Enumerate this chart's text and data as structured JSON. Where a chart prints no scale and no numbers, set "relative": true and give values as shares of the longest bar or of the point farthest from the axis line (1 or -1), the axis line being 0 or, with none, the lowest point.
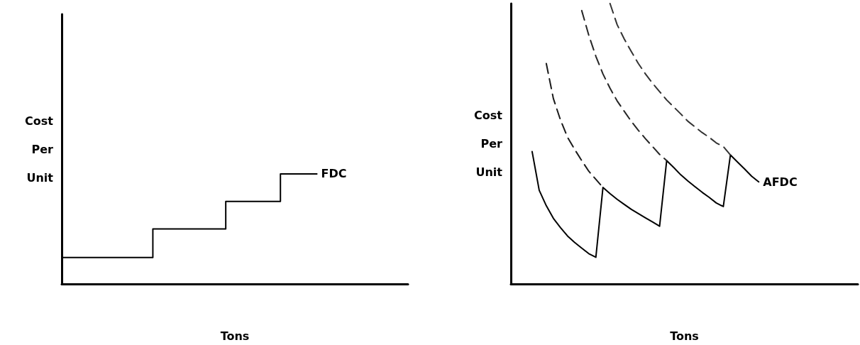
{
  "chart_data": [
    {
      "type": "step",
      "ylabel": "Cost\nPer\nUnit",
      "xlabel": "Tons",
      "relative": true,
      "categories": [
        null,
        null,
        null,
        null,
        null,
        null,
        null,
        null,
        null,
        null,
        null,
        null,
        null,
        null,
        null,
        null,
        null,
        null,
        null,
        null
      ],
      "series": [
        {
          "name": "FDC",
          "color": "#000000",
          "line_style": "solid",
          "values": [
            0.24,
            0.24,
            0.24,
            0.24,
            0.24,
            0.5,
            0.5,
            0.5,
            0.5,
            0.75,
            0.75,
            0.75,
            1.0,
            1.0,
            1.0,
            null,
            null,
            null,
            null,
            null
          ]
        }
      ]
    },
    {
      "type": "line",
      "ylabel": "Cost\nPer\nUnit",
      "xlabel": "Tons",
      "relative": true,
      "categories": [
        null,
        null,
        null,
        null,
        null,
        null,
        null,
        null,
        null,
        null,
        null,
        null,
        null,
        null,
        null,
        null,
        null,
        null,
        null,
        null,
        null,
        null,
        null,
        null,
        null,
        null,
        null,
        null,
        null,
        null,
        null,
        null,
        null,
        null,
        null,
        null,
        null,
        null,
        null,
        null,
        null,
        null,
        null,
        null,
        null,
        null,
        null,
        null,
        null,
        null
      ],
      "series": [
        {
          "name": "AFDC",
          "color": "#000000",
          "line_style": "solid",
          "values": [
            null,
            null,
            null,
            0.472,
            0.334,
            0.279,
            0.234,
            0.201,
            0.171,
            0.148,
            0.128,
            0.108,
            0.095,
            0.344,
            0.322,
            0.302,
            0.284,
            0.266,
            0.251,
            0.236,
            0.221,
            0.206,
            0.44,
            0.415,
            0.389,
            0.367,
            0.347,
            0.327,
            0.309,
            0.289,
            0.276,
            0.46,
            0.435,
            0.41,
            0.384,
            0.364,
            null,
            null,
            null,
            null,
            null,
            null,
            null,
            null,
            null,
            null,
            null,
            null,
            null,
            null
          ]
        },
        {
          "color": "#1a1a1a",
          "line_style": "dashed",
          "values": [
            null,
            null,
            null,
            null,
            null,
            0.786,
            0.661,
            0.585,
            0.523,
            0.48,
            0.44,
            0.402,
            0.373,
            0.344,
            null,
            null,
            null,
            null,
            null,
            null,
            null,
            null,
            null,
            null,
            null,
            null,
            null,
            null,
            null,
            null,
            null,
            null,
            null,
            null,
            null,
            null,
            null,
            null,
            null,
            null,
            null,
            null,
            null,
            null,
            null,
            null,
            null,
            null,
            null,
            null
          ]
        },
        {
          "color": "#262626",
          "line_style": "dashed",
          "values": [
            null,
            null,
            null,
            null,
            null,
            null,
            null,
            null,
            null,
            null,
            0.975,
            0.887,
            0.812,
            0.749,
            0.698,
            0.653,
            0.616,
            0.58,
            0.548,
            0.518,
            0.49,
            0.462,
            0.44,
            null,
            null,
            null,
            null,
            null,
            null,
            null,
            null,
            null,
            null,
            null,
            null,
            null,
            null,
            null,
            null,
            null,
            null,
            null,
            null,
            null,
            null,
            null,
            null,
            null,
            null,
            null
          ]
        },
        {
          "color": "#333333",
          "line_style": "dashed",
          "values": [
            null,
            null,
            null,
            null,
            null,
            null,
            null,
            null,
            null,
            null,
            null,
            null,
            null,
            null,
            1.0,
            0.925,
            0.874,
            0.829,
            0.786,
            0.749,
            0.716,
            0.686,
            0.656,
            0.631,
            0.606,
            0.58,
            0.56,
            0.54,
            0.523,
            0.503,
            0.49,
            0.46,
            null,
            null,
            null,
            null,
            null,
            null,
            null,
            null,
            null,
            null,
            null,
            null,
            null,
            null,
            null,
            null,
            null,
            null
          ]
        }
      ]
    }
  ]
}
